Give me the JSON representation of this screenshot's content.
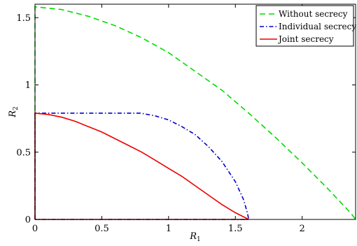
{
  "chart_data": {
    "type": "line",
    "title": "",
    "xlabel": "R",
    "xlabel_sub": "1",
    "ylabel": "R",
    "ylabel_sub": "2",
    "xlim": [
      0,
      2.4
    ],
    "ylim": [
      0,
      1.6
    ],
    "grid": false,
    "legend_position": "top-right",
    "x_ticks": [
      0,
      0.5,
      1,
      1.5,
      2
    ],
    "x_tick_labels": [
      "0",
      "0.5",
      "1",
      "1.5",
      "2"
    ],
    "y_ticks": [
      0,
      0.5,
      1,
      1.5
    ],
    "y_tick_labels": [
      "0",
      "0.5",
      "1",
      "1.5"
    ],
    "series": [
      {
        "name": "Without secrecy",
        "color": "#00dd00",
        "dash": "dashed",
        "points": [
          [
            0,
            0
          ],
          [
            0,
            1.58
          ],
          [
            0.2,
            1.56
          ],
          [
            0.4,
            1.51
          ],
          [
            0.6,
            1.44
          ],
          [
            0.8,
            1.35
          ],
          [
            1.0,
            1.24
          ],
          [
            1.2,
            1.1
          ],
          [
            1.4,
            0.96
          ],
          [
            1.6,
            0.79
          ],
          [
            1.8,
            0.61
          ],
          [
            2.0,
            0.42
          ],
          [
            2.2,
            0.22
          ],
          [
            2.37,
            0.04
          ],
          [
            2.4,
            0
          ]
        ]
      },
      {
        "name": "Individual secrecy",
        "color": "#0000cc",
        "dash": "dashdot",
        "points": [
          [
            0,
            0
          ],
          [
            0,
            0.79
          ],
          [
            0.79,
            0.79
          ],
          [
            0.9,
            0.77
          ],
          [
            1.0,
            0.74
          ],
          [
            1.1,
            0.69
          ],
          [
            1.2,
            0.63
          ],
          [
            1.3,
            0.54
          ],
          [
            1.4,
            0.43
          ],
          [
            1.5,
            0.28
          ],
          [
            1.56,
            0.15
          ],
          [
            1.59,
            0.05
          ],
          [
            1.6,
            0
          ],
          [
            0,
            0
          ]
        ]
      },
      {
        "name": "Joint secrecy",
        "color": "#ee0000",
        "dash": "solid",
        "points": [
          [
            0,
            0
          ],
          [
            0,
            0.79
          ],
          [
            0.1,
            0.78
          ],
          [
            0.2,
            0.76
          ],
          [
            0.3,
            0.73
          ],
          [
            0.4,
            0.69
          ],
          [
            0.5,
            0.65
          ],
          [
            0.6,
            0.6
          ],
          [
            0.7,
            0.55
          ],
          [
            0.8,
            0.5
          ],
          [
            0.9,
            0.44
          ],
          [
            1.0,
            0.38
          ],
          [
            1.1,
            0.32
          ],
          [
            1.2,
            0.25
          ],
          [
            1.3,
            0.18
          ],
          [
            1.4,
            0.11
          ],
          [
            1.5,
            0.05
          ],
          [
            1.6,
            0
          ],
          [
            0,
            0
          ]
        ]
      }
    ]
  }
}
